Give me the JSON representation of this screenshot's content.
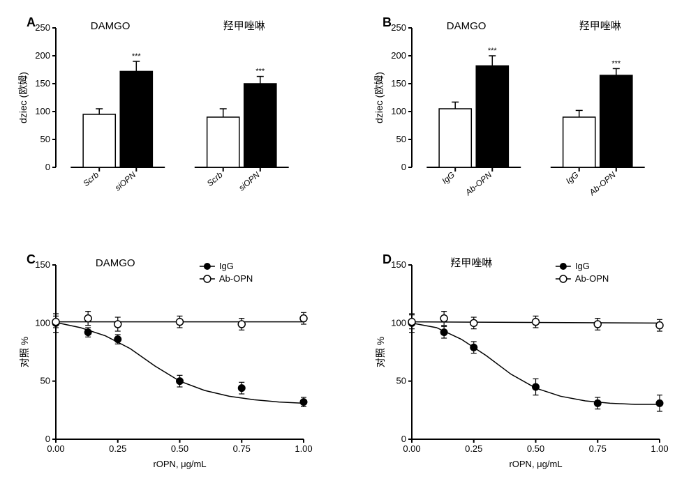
{
  "panels": {
    "A": {
      "letter": "A",
      "title_left": "DAMGO",
      "title_right": "羟甲唑啉",
      "ylabel": "dziec (欧姆)",
      "type": "bar",
      "ylim": [
        0,
        250
      ],
      "ytick_step": 50,
      "groups": [
        {
          "x_labels": [
            "Scrb",
            "siOPN"
          ],
          "bars": [
            {
              "value": 95,
              "err": 10,
              "fill": "#ffffff"
            },
            {
              "value": 172,
              "err": 18,
              "fill": "#000000",
              "sig": "***"
            }
          ]
        },
        {
          "x_labels": [
            "Scrb",
            "siOPN"
          ],
          "bars": [
            {
              "value": 90,
              "err": 15,
              "fill": "#ffffff"
            },
            {
              "value": 150,
              "err": 13,
              "fill": "#000000",
              "sig": "***"
            }
          ]
        }
      ],
      "bar_width": 0.7,
      "axis_color": "#000000",
      "background": "#ffffff"
    },
    "B": {
      "letter": "B",
      "title_left": "DAMGO",
      "title_right": "羟甲唑啉",
      "ylabel": "dziec (欧姆)",
      "type": "bar",
      "ylim": [
        0,
        250
      ],
      "ytick_step": 50,
      "groups": [
        {
          "x_labels": [
            "IgG",
            "Ab-OPN"
          ],
          "bars": [
            {
              "value": 105,
              "err": 12,
              "fill": "#ffffff"
            },
            {
              "value": 182,
              "err": 18,
              "fill": "#000000",
              "sig": "***"
            }
          ]
        },
        {
          "x_labels": [
            "IgG",
            "Ab-OPN"
          ],
          "bars": [
            {
              "value": 90,
              "err": 12,
              "fill": "#ffffff"
            },
            {
              "value": 165,
              "err": 12,
              "fill": "#000000",
              "sig": "***"
            }
          ]
        }
      ],
      "bar_width": 0.7,
      "axis_color": "#000000",
      "background": "#ffffff"
    },
    "C": {
      "letter": "C",
      "title": "DAMGO",
      "ylabel": "对照 %",
      "xlabel": "rOPN, μg/mL",
      "type": "line",
      "ylim": [
        0,
        150
      ],
      "ytick_step": 50,
      "xlim": [
        0,
        1.0
      ],
      "xtick_step": 0.25,
      "legend": [
        {
          "label": "IgG",
          "marker": "filled",
          "color": "#000000"
        },
        {
          "label": "Ab-OPN",
          "marker": "open",
          "color": "#000000"
        }
      ],
      "series": [
        {
          "name": "IgG",
          "marker": "filled",
          "line_color": "#000000",
          "points": [
            {
              "x": 0.0,
              "y": 100,
              "err": 8
            },
            {
              "x": 0.13,
              "y": 92,
              "err": 4
            },
            {
              "x": 0.25,
              "y": 86,
              "err": 4
            },
            {
              "x": 0.5,
              "y": 50,
              "err": 5
            },
            {
              "x": 0.75,
              "y": 44,
              "err": 5
            },
            {
              "x": 1.0,
              "y": 32,
              "err": 4
            }
          ],
          "fit": [
            {
              "x": 0.0,
              "y": 100.5
            },
            {
              "x": 0.1,
              "y": 96
            },
            {
              "x": 0.2,
              "y": 89
            },
            {
              "x": 0.3,
              "y": 78
            },
            {
              "x": 0.4,
              "y": 63
            },
            {
              "x": 0.5,
              "y": 50
            },
            {
              "x": 0.6,
              "y": 42
            },
            {
              "x": 0.7,
              "y": 37
            },
            {
              "x": 0.8,
              "y": 34
            },
            {
              "x": 0.9,
              "y": 32
            },
            {
              "x": 1.0,
              "y": 31
            }
          ]
        },
        {
          "name": "Ab-OPN",
          "marker": "open",
          "line_color": "#000000",
          "points": [
            {
              "x": 0.0,
              "y": 101,
              "err": 5
            },
            {
              "x": 0.13,
              "y": 104,
              "err": 6
            },
            {
              "x": 0.25,
              "y": 99,
              "err": 6
            },
            {
              "x": 0.5,
              "y": 101,
              "err": 5
            },
            {
              "x": 0.75,
              "y": 99,
              "err": 5
            },
            {
              "x": 1.0,
              "y": 104,
              "err": 5
            }
          ],
          "fit": [
            {
              "x": 0.0,
              "y": 101
            },
            {
              "x": 1.0,
              "y": 101
            }
          ]
        }
      ],
      "axis_color": "#000000",
      "background": "#ffffff",
      "marker_size": 5,
      "line_width": 1.5
    },
    "D": {
      "letter": "D",
      "title": "羟甲唑啉",
      "ylabel": "对照 %",
      "xlabel": "rOPN, μg/mL",
      "type": "line",
      "ylim": [
        0,
        150
      ],
      "ytick_step": 50,
      "xlim": [
        0,
        1.0
      ],
      "xtick_step": 0.25,
      "legend": [
        {
          "label": "IgG",
          "marker": "filled",
          "color": "#000000"
        },
        {
          "label": "Ab-OPN",
          "marker": "open",
          "color": "#000000"
        }
      ],
      "series": [
        {
          "name": "IgG",
          "marker": "filled",
          "line_color": "#000000",
          "points": [
            {
              "x": 0.0,
              "y": 100,
              "err": 8
            },
            {
              "x": 0.13,
              "y": 92,
              "err": 5
            },
            {
              "x": 0.25,
              "y": 79,
              "err": 5
            },
            {
              "x": 0.5,
              "y": 45,
              "err": 7
            },
            {
              "x": 0.75,
              "y": 31,
              "err": 5
            },
            {
              "x": 1.0,
              "y": 31,
              "err": 7
            }
          ],
          "fit": [
            {
              "x": 0.0,
              "y": 100
            },
            {
              "x": 0.1,
              "y": 96
            },
            {
              "x": 0.2,
              "y": 86
            },
            {
              "x": 0.3,
              "y": 72
            },
            {
              "x": 0.4,
              "y": 56
            },
            {
              "x": 0.5,
              "y": 44
            },
            {
              "x": 0.6,
              "y": 37
            },
            {
              "x": 0.7,
              "y": 33
            },
            {
              "x": 0.8,
              "y": 31
            },
            {
              "x": 0.9,
              "y": 30
            },
            {
              "x": 1.0,
              "y": 30
            }
          ]
        },
        {
          "name": "Ab-OPN",
          "marker": "open",
          "line_color": "#000000",
          "points": [
            {
              "x": 0.0,
              "y": 101,
              "err": 6
            },
            {
              "x": 0.13,
              "y": 104,
              "err": 6
            },
            {
              "x": 0.25,
              "y": 100,
              "err": 5
            },
            {
              "x": 0.5,
              "y": 101,
              "err": 5
            },
            {
              "x": 0.75,
              "y": 99,
              "err": 5
            },
            {
              "x": 1.0,
              "y": 98,
              "err": 5
            }
          ],
          "fit": [
            {
              "x": 0.0,
              "y": 101
            },
            {
              "x": 1.0,
              "y": 100
            }
          ]
        }
      ],
      "axis_color": "#000000",
      "background": "#ffffff",
      "marker_size": 5,
      "line_width": 1.5
    }
  }
}
